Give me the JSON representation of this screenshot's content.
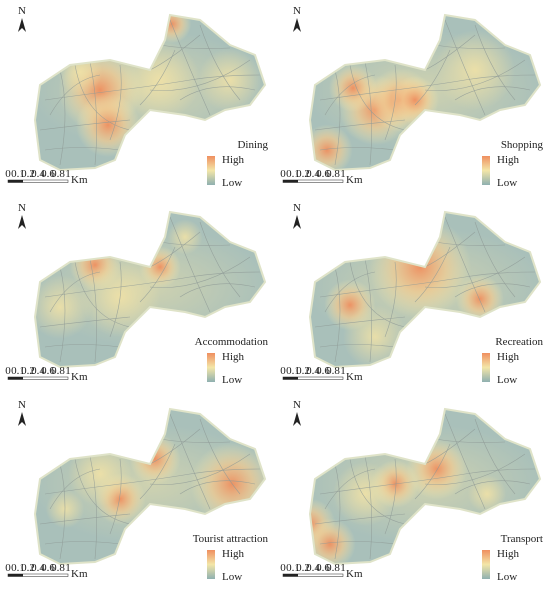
{
  "north": "N",
  "legend": {
    "high": "High",
    "low": "Low"
  },
  "scale": {
    "labels": [
      "0",
      "0.1",
      "0.2",
      "0.4",
      "0.6",
      "0.8",
      "1"
    ],
    "unit": "Km"
  },
  "panels": [
    {
      "title": "Dining"
    },
    {
      "title": "Shopping"
    },
    {
      "title": "Accommodation"
    },
    {
      "title": "Recreation"
    },
    {
      "title": "Tourist attraction"
    },
    {
      "title": "Transport"
    }
  ]
}
